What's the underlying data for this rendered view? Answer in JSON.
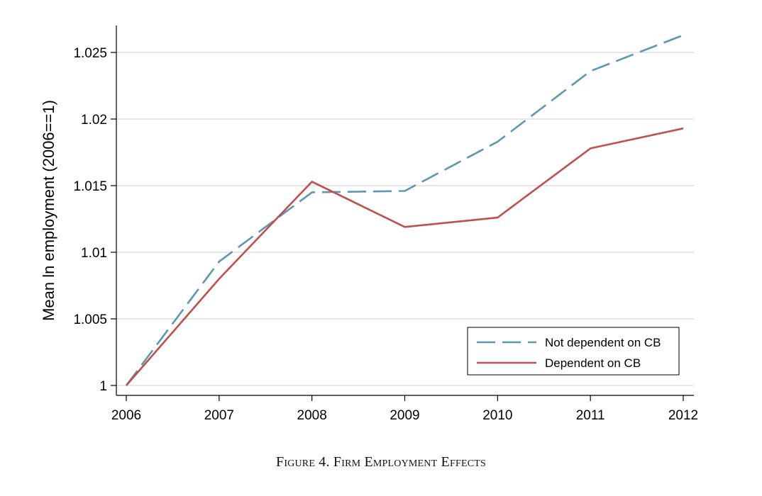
{
  "chart_data": {
    "type": "line",
    "x": [
      2006,
      2007,
      2008,
      2009,
      2010,
      2011,
      2012
    ],
    "x_tick_labels": [
      "2006",
      "2007",
      "2008",
      "2009",
      "2010",
      "2011",
      "2012"
    ],
    "y_tick_values": [
      1,
      1.005,
      1.01,
      1.015,
      1.02,
      1.025
    ],
    "y_tick_labels": [
      "1",
      "1.005",
      "1.01",
      "1.015",
      "1.02",
      "1.025"
    ],
    "xlim": [
      2006,
      2012
    ],
    "ylim": [
      0.9993,
      1.0272
    ],
    "ylabel": "Mean ln employment (2006==1)",
    "xlabel": "",
    "grid": "horizontal",
    "legend_position": "bottom-right",
    "series": [
      {
        "name": "Not dependent on CB",
        "color": "#5b98b4",
        "style": "dashed",
        "values": [
          1.0,
          1.0093,
          1.0145,
          1.0146,
          1.0183,
          1.0236,
          1.0263
        ]
      },
      {
        "name": "Dependent on CB",
        "color": "#c0504d",
        "style": "solid",
        "values": [
          1.0,
          1.008,
          1.0153,
          1.0119,
          1.0126,
          1.0178,
          1.0193
        ]
      }
    ]
  },
  "caption": "Figure 4. Firm Employment Effects"
}
